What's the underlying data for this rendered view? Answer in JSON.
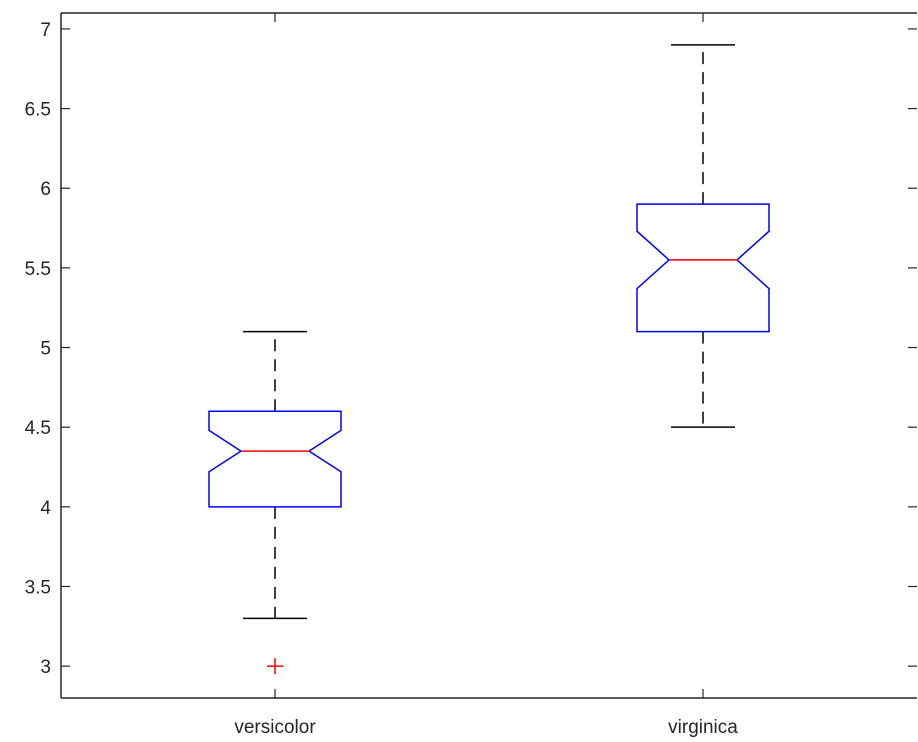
{
  "chart_data": {
    "type": "boxplot",
    "notched": true,
    "categories": [
      "versicolor",
      "virginica"
    ],
    "ylim": [
      2.8,
      7.1
    ],
    "yticks": [
      3,
      3.5,
      4,
      4.5,
      5,
      5.5,
      6,
      6.5,
      7
    ],
    "ytick_labels": [
      "3",
      "3.5",
      "4",
      "4.5",
      "5",
      "5.5",
      "6",
      "6.5",
      "7"
    ],
    "boxes": [
      {
        "category": "versicolor",
        "whisker_low": 3.3,
        "q1": 4.0,
        "median": 4.35,
        "q3": 4.6,
        "whisker_high": 5.1,
        "notch_low": 4.22,
        "notch_high": 4.48,
        "outliers": [
          3.0
        ]
      },
      {
        "category": "virginica",
        "whisker_low": 4.5,
        "q1": 5.1,
        "median": 5.55,
        "q3": 5.9,
        "whisker_high": 6.9,
        "notch_low": 5.37,
        "notch_high": 5.73,
        "outliers": []
      }
    ],
    "title": "",
    "xlabel": "",
    "ylabel": "",
    "grid": false,
    "colors": {
      "box": "#0000ff",
      "median": "#ff0000",
      "whisker": "#000000",
      "outlier": "#ff0000",
      "axis": "#262626"
    }
  }
}
